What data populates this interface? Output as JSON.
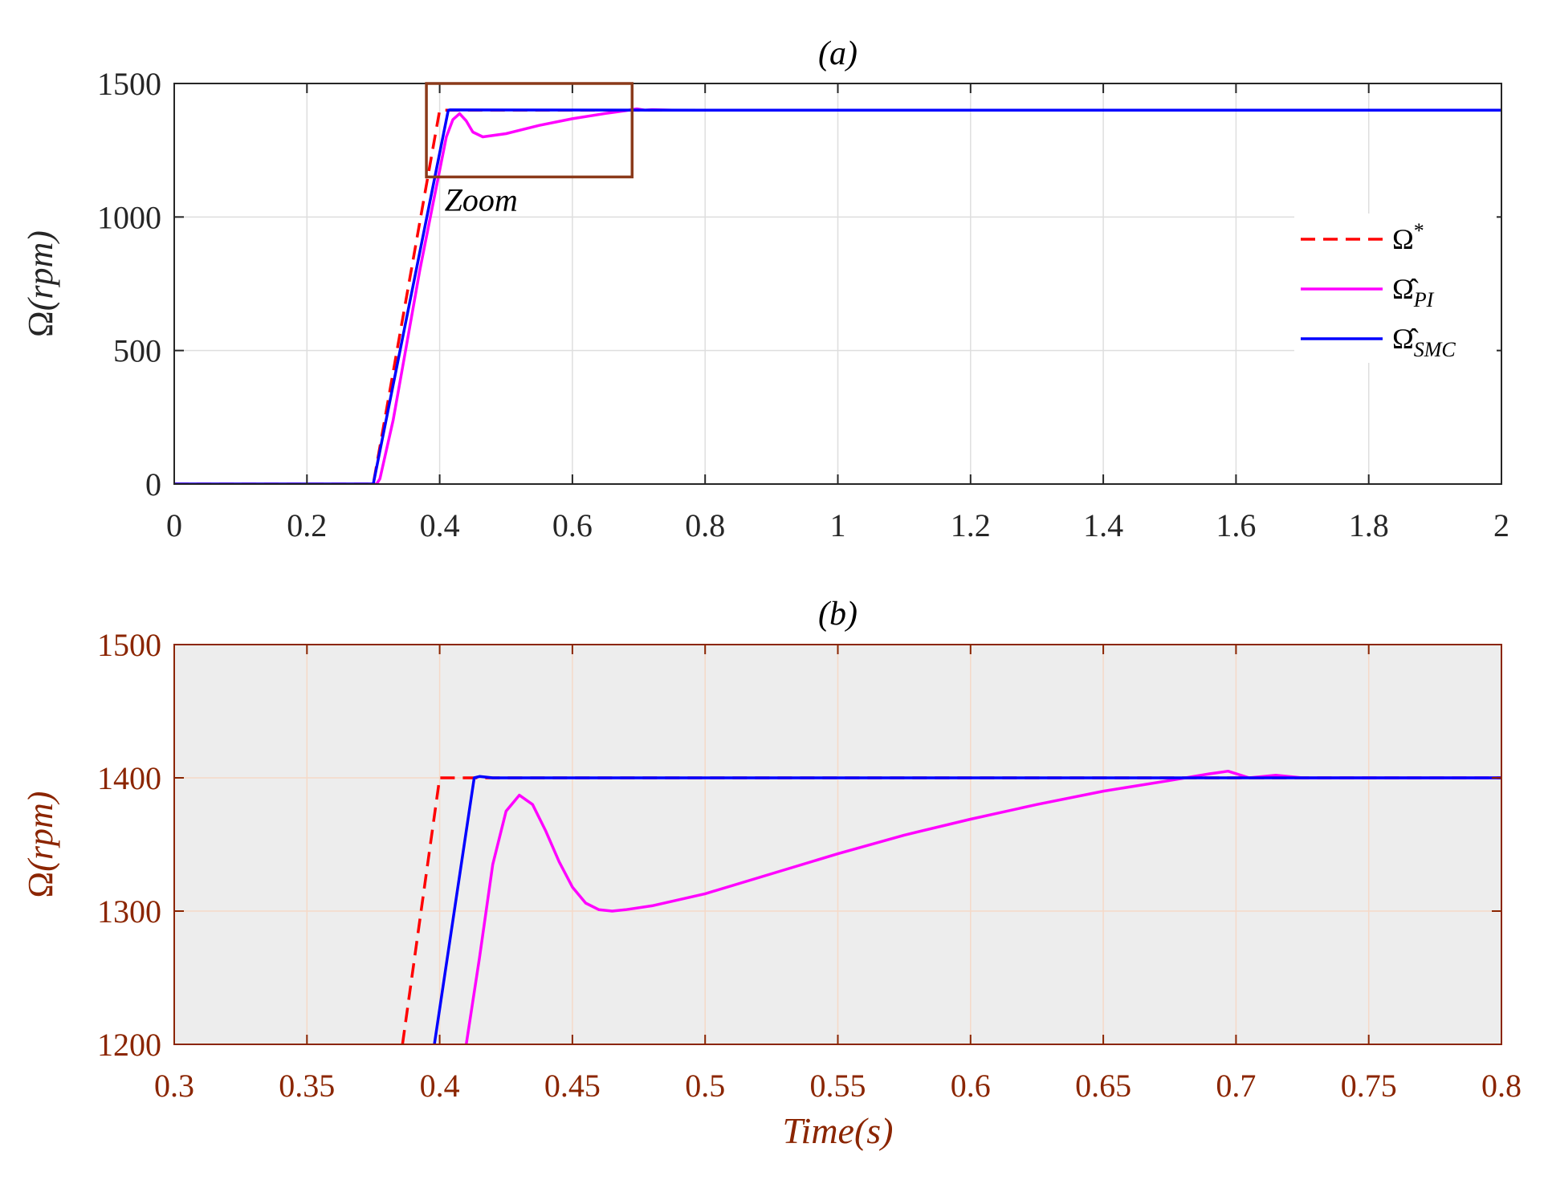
{
  "colors": {
    "reference": "#ff0000",
    "pi": "#ff00ff",
    "smc": "#0000ff",
    "accent_brown": "#8b2500",
    "zoom_box": "#8b3a1a",
    "grid": "#dcdcdc",
    "panel_b_bg": "#ededed"
  },
  "chart_data": [
    {
      "type": "line",
      "panel": "a",
      "title": "(a)",
      "xlabel": "",
      "ylabel": "Ω(rpm)",
      "xlim": [
        0,
        2
      ],
      "ylim": [
        0,
        1500
      ],
      "xticks": [
        0,
        0.2,
        0.4,
        0.6,
        0.8,
        1,
        1.2,
        1.4,
        1.6,
        1.8,
        2
      ],
      "xtick_labels": [
        "0",
        "0.2",
        "0.4",
        "0.6",
        "0.8",
        "1",
        "1.2",
        "1.4",
        "1.6",
        "1.8",
        "2"
      ],
      "yticks": [
        0,
        500,
        1000,
        1500
      ],
      "ytick_labels": [
        "0",
        "500",
        "1000",
        "1500"
      ],
      "grid": true,
      "legend_position": "right",
      "annotation": {
        "text": "Zoom",
        "box": {
          "x": [
            0.38,
            0.69
          ],
          "y": [
            1150,
            1500
          ]
        }
      },
      "series": [
        {
          "name": "Ω*",
          "style": "dashed",
          "color": "#ff0000",
          "x": [
            0,
            0.3,
            0.4,
            2
          ],
          "y": [
            0,
            0,
            1400,
            1400
          ]
        },
        {
          "name": "Ω̂PI",
          "style": "solid",
          "color": "#ff00ff",
          "x": [
            0,
            0.305,
            0.31,
            0.33,
            0.35,
            0.37,
            0.39,
            0.41,
            0.42,
            0.43,
            0.44,
            0.45,
            0.465,
            0.5,
            0.55,
            0.6,
            0.65,
            0.68,
            0.697,
            0.71,
            0.72,
            0.75,
            0.8,
            2
          ],
          "y": [
            0,
            0,
            20,
            240,
            520,
            800,
            1050,
            1300,
            1365,
            1387,
            1360,
            1318,
            1300,
            1312,
            1343,
            1368,
            1388,
            1398,
            1405,
            1400,
            1402,
            1400,
            1400,
            1400
          ]
        },
        {
          "name": "Ω̂SMC",
          "style": "solid",
          "color": "#0000ff",
          "x": [
            0,
            0.3,
            0.413,
            0.415,
            0.8,
            2
          ],
          "y": [
            0,
            0,
            1400,
            1401,
            1400,
            1400
          ]
        }
      ]
    },
    {
      "type": "line",
      "panel": "b",
      "title": "(b)",
      "xlabel": "Time(s)",
      "ylabel": "Ω(rpm)",
      "xlim": [
        0.3,
        0.8
      ],
      "ylim": [
        1200,
        1500
      ],
      "xticks": [
        0.3,
        0.35,
        0.4,
        0.45,
        0.5,
        0.55,
        0.6,
        0.65,
        0.7,
        0.75,
        0.8
      ],
      "xtick_labels": [
        "0.3",
        "0.35",
        "0.4",
        "0.45",
        "0.5",
        "0.55",
        "0.6",
        "0.65",
        "0.7",
        "0.75",
        "0.8"
      ],
      "yticks": [
        1200,
        1300,
        1400,
        1500
      ],
      "ytick_labels": [
        "1200",
        "1300",
        "1400",
        "1500"
      ],
      "grid": true,
      "series": [
        {
          "name": "Ω*",
          "style": "dashed",
          "color": "#ff0000",
          "x": [
            0.386,
            0.4,
            0.8
          ],
          "y": [
            1200,
            1400,
            1400
          ]
        },
        {
          "name": "Ω̂PI",
          "style": "solid",
          "color": "#ff00ff",
          "x": [
            0.41,
            0.415,
            0.42,
            0.425,
            0.43,
            0.435,
            0.44,
            0.445,
            0.45,
            0.455,
            0.46,
            0.465,
            0.47,
            0.48,
            0.5,
            0.525,
            0.55,
            0.575,
            0.6,
            0.625,
            0.65,
            0.675,
            0.69,
            0.697,
            0.705,
            0.715,
            0.725,
            0.75,
            0.8
          ],
          "y": [
            1200,
            1265,
            1335,
            1375,
            1387,
            1380,
            1360,
            1337,
            1318,
            1306,
            1301,
            1300,
            1301,
            1304,
            1313,
            1328,
            1343,
            1357,
            1369,
            1380,
            1390,
            1398,
            1403,
            1405,
            1400,
            1402,
            1400,
            1400,
            1400
          ]
        },
        {
          "name": "Ω̂SMC",
          "style": "solid",
          "color": "#0000ff",
          "x": [
            0.398,
            0.413,
            0.415,
            0.42,
            0.8
          ],
          "y": [
            1200,
            1400,
            1401,
            1400,
            1400
          ]
        }
      ]
    }
  ]
}
